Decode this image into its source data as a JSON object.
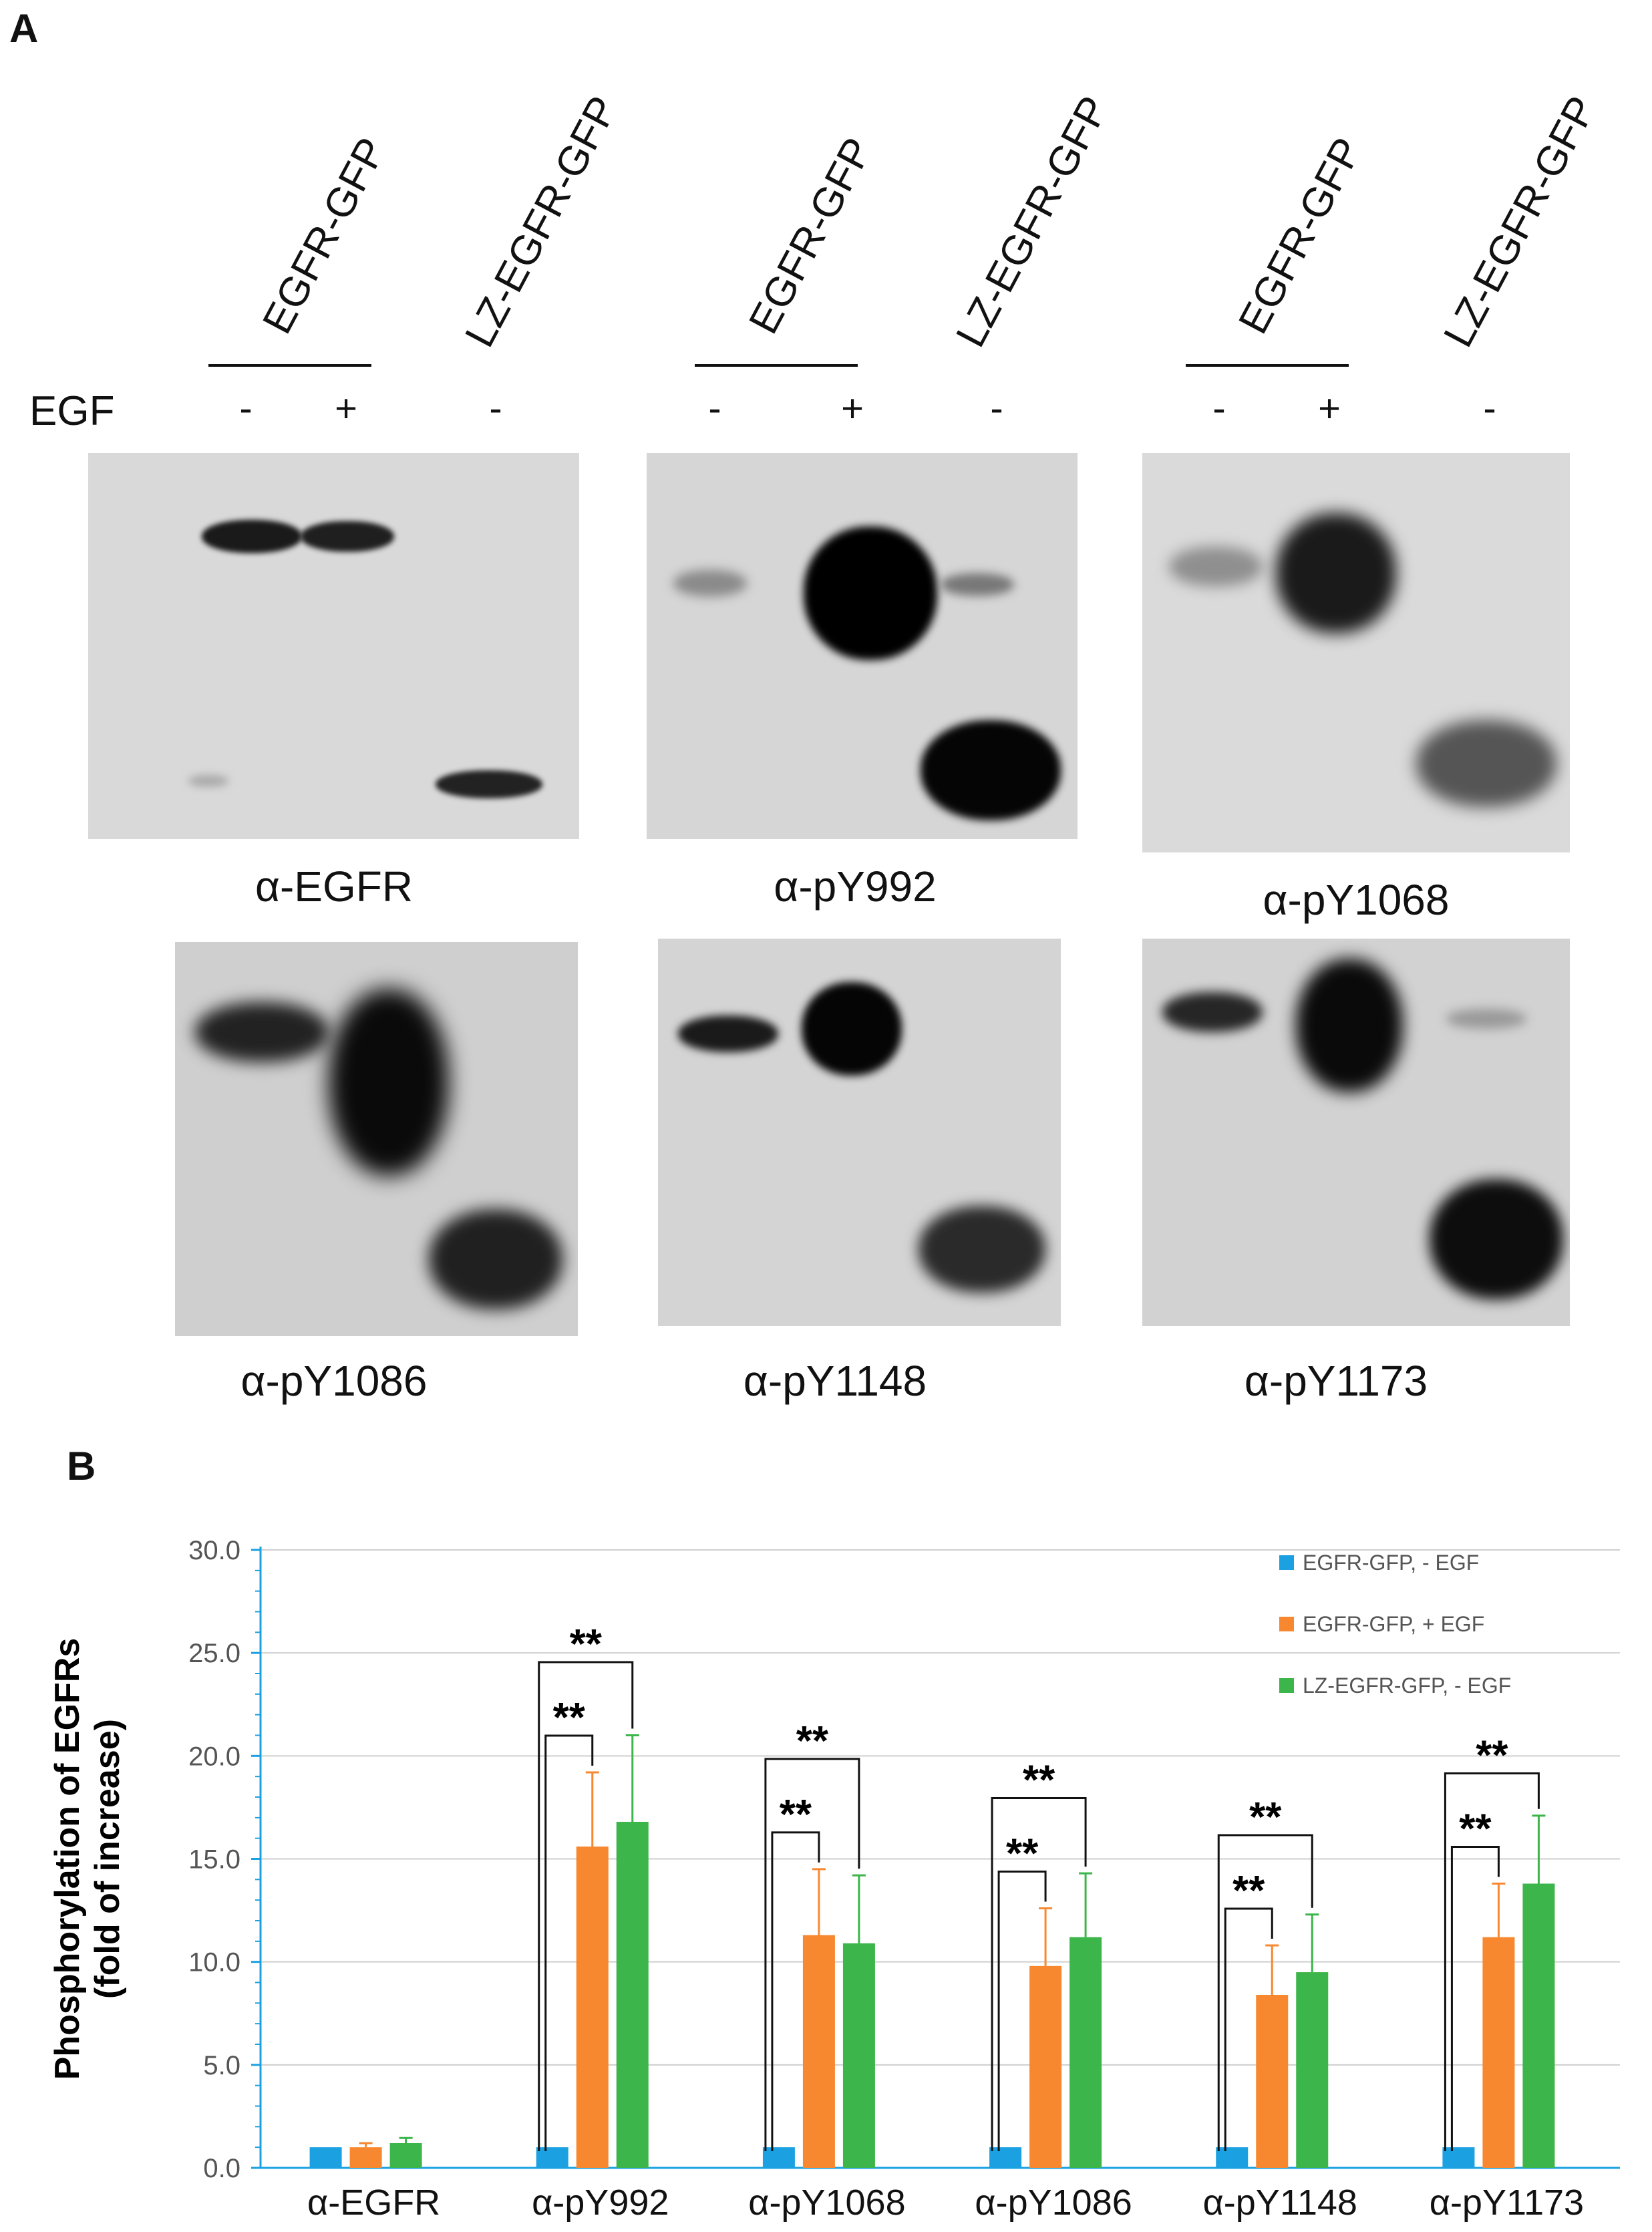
{
  "panel_a": {
    "letter": "A",
    "egf_label": "EGF",
    "lane_headers": [
      "EGFR-GFP",
      "LZ-EGFR-GFP"
    ],
    "lane_signs": [
      "-",
      "+",
      "-"
    ],
    "blots": [
      {
        "label": "α-EGFR"
      },
      {
        "label": "α-pY992"
      },
      {
        "label": "α-pY1068"
      },
      {
        "label": "α-pY1086"
      },
      {
        "label": "α-pY1148"
      },
      {
        "label": "α-pY1173"
      }
    ]
  },
  "panel_b": {
    "letter": "B"
  },
  "chart_data": {
    "type": "bar",
    "ylabel": "Phosphorylation of EGFRs (fold of increase)",
    "ylim": [
      0,
      30
    ],
    "yticks": [
      "0.0",
      "5.0",
      "10.0",
      "15.0",
      "20.0",
      "25.0",
      "30.0"
    ],
    "grid": true,
    "legend_position": "top-right",
    "categories": [
      "α-EGFR",
      "α-pY992",
      "α-pY1068",
      "α-pY1086",
      "α-pY1148",
      "α-pY1173"
    ],
    "series": [
      {
        "name": "EGFR-GFP, - EGF",
        "color": "#1ba1e2",
        "values": [
          1.0,
          1.0,
          1.0,
          1.0,
          1.0,
          1.0
        ],
        "errors": [
          0,
          0,
          0,
          0,
          0,
          0
        ]
      },
      {
        "name": "EGFR-GFP, + EGF",
        "color": "#f7882f",
        "values": [
          1.0,
          15.6,
          11.3,
          9.8,
          8.4,
          11.2
        ],
        "errors": [
          0.2,
          3.6,
          3.2,
          2.8,
          2.4,
          2.6
        ]
      },
      {
        "name": "LZ-EGFR-GFP, - EGF",
        "color": "#3cb54a",
        "values": [
          1.2,
          16.8,
          10.9,
          11.2,
          9.5,
          13.8
        ],
        "errors": [
          0.25,
          4.2,
          3.3,
          3.1,
          2.8,
          3.3
        ]
      }
    ],
    "significance_label": "**",
    "significance_marks": [
      1,
      2,
      3,
      4,
      5
    ]
  }
}
